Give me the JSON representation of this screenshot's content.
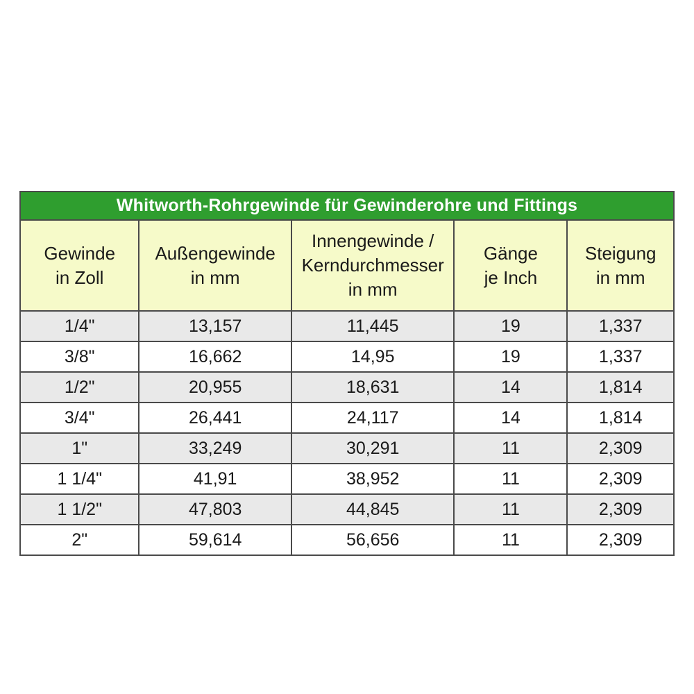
{
  "colors": {
    "header_green": "#2f9e2f",
    "header_row_yellow": "#f6fac9",
    "row_alt_gray": "#e9e9e9",
    "border": "#4a4a4a"
  },
  "chart_data": {
    "type": "table",
    "title": "Whitworth-Rohrgewinde für Gewinderohre und Fittings",
    "columns": [
      "Gewinde\nin Zoll",
      "Außengewinde\nin mm",
      "Innengewinde /\nKerndurchmesser\nin mm",
      "Gänge\nje Inch",
      "Steigung\nin mm"
    ],
    "rows": [
      [
        "1/4\"",
        "13,157",
        "11,445",
        "19",
        "1,337"
      ],
      [
        "3/8\"",
        "16,662",
        "14,95",
        "19",
        "1,337"
      ],
      [
        "1/2\"",
        "20,955",
        "18,631",
        "14",
        "1,814"
      ],
      [
        "3/4\"",
        "26,441",
        "24,117",
        "14",
        "1,814"
      ],
      [
        "1\"",
        "33,249",
        "30,291",
        "11",
        "2,309"
      ],
      [
        "1 1/4\"",
        "41,91",
        "38,952",
        "11",
        "2,309"
      ],
      [
        "1 1/2\"",
        "47,803",
        "44,845",
        "11",
        "2,309"
      ],
      [
        "2\"",
        "59,614",
        "56,656",
        "11",
        "2,309"
      ]
    ]
  }
}
